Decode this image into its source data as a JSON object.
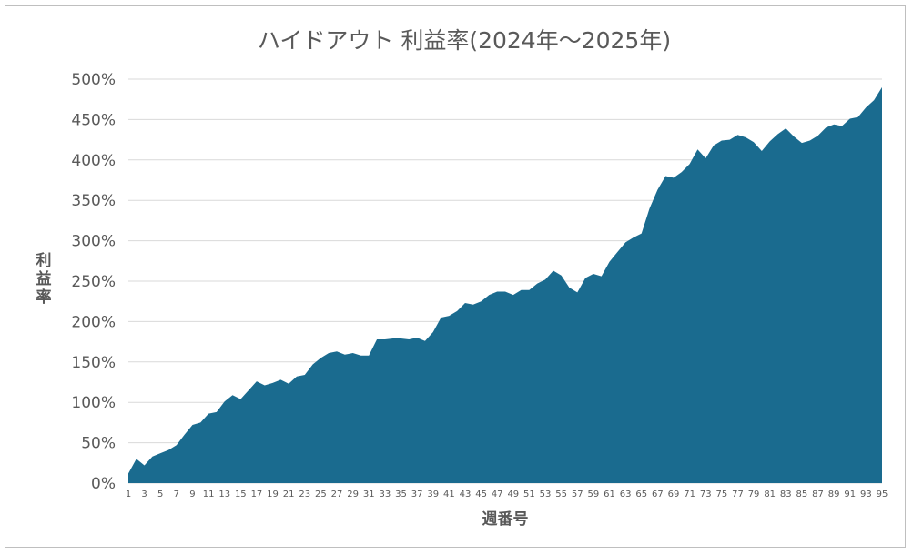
{
  "chart_data": {
    "type": "area",
    "title": "ハイドアウト 利益率(2024年～2025年)",
    "xlabel": "週番号",
    "ylabel": "利益率",
    "y_unit": "%",
    "ylim": [
      0,
      500
    ],
    "yticks": [
      0,
      50,
      100,
      150,
      200,
      250,
      300,
      350,
      400,
      450,
      500
    ],
    "grid": true,
    "legend": "none",
    "color": "#1a6b8f",
    "x": [
      1,
      2,
      3,
      4,
      5,
      6,
      7,
      8,
      9,
      10,
      11,
      12,
      13,
      14,
      15,
      16,
      17,
      18,
      19,
      20,
      21,
      22,
      23,
      24,
      25,
      26,
      27,
      28,
      29,
      30,
      31,
      32,
      33,
      34,
      35,
      36,
      37,
      38,
      39,
      40,
      41,
      42,
      43,
      44,
      45,
      46,
      47,
      48,
      49,
      50,
      51,
      52,
      53,
      54,
      55,
      56,
      57,
      58,
      59,
      60,
      61,
      62,
      63,
      64,
      65,
      66,
      67,
      68,
      69,
      70,
      71,
      72,
      73,
      74,
      75,
      76,
      77,
      78,
      79,
      80,
      81,
      82,
      83,
      84,
      85,
      86,
      87,
      88,
      89,
      90,
      91,
      92,
      93,
      94,
      95
    ],
    "xticks": [
      1,
      3,
      5,
      7,
      9,
      11,
      13,
      15,
      17,
      19,
      21,
      23,
      25,
      27,
      29,
      31,
      33,
      35,
      37,
      39,
      41,
      43,
      45,
      47,
      49,
      51,
      53,
      55,
      57,
      59,
      61,
      63,
      65,
      67,
      69,
      71,
      73,
      75,
      77,
      79,
      81,
      83,
      85,
      87,
      89,
      91,
      93,
      95
    ],
    "values": [
      12,
      30,
      22,
      33,
      37,
      41,
      47,
      60,
      72,
      75,
      86,
      88,
      101,
      109,
      104,
      115,
      126,
      121,
      124,
      128,
      123,
      132,
      134,
      147,
      155,
      161,
      163,
      159,
      161,
      158,
      158,
      178,
      178,
      179,
      179,
      178,
      180,
      176,
      187,
      205,
      207,
      213,
      223,
      221,
      225,
      233,
      237,
      237,
      233,
      239,
      239,
      247,
      252,
      263,
      257,
      242,
      236,
      254,
      259,
      256,
      274,
      286,
      298,
      304,
      309,
      340,
      363,
      380,
      378,
      385,
      395,
      413,
      402,
      418,
      424,
      425,
      431,
      428,
      422,
      411,
      423,
      432,
      439,
      429,
      421,
      424,
      430,
      440,
      444,
      442,
      451,
      453,
      465,
      474,
      490
    ]
  }
}
